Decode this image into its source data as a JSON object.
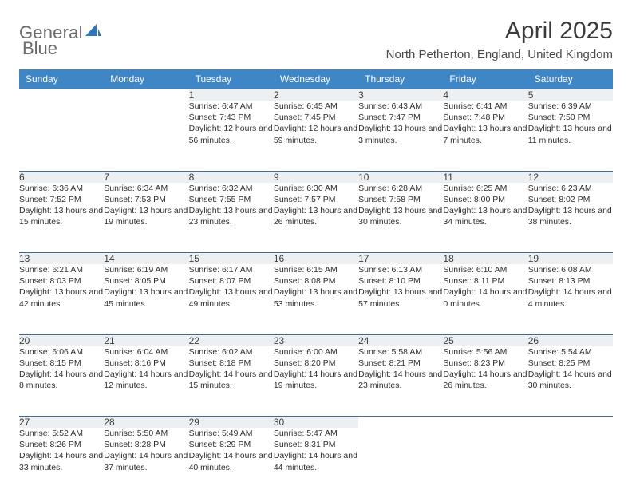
{
  "brand": {
    "name1": "General",
    "name2": "Blue"
  },
  "title": "April 2025",
  "location": "North Petherton, England, United Kingdom",
  "colors": {
    "header_bg": "#3f86c7",
    "header_text": "#ffffff",
    "row_border": "#3f6d99",
    "daynum_bg": "#edf0f2",
    "logo_gray": "#6b6b6b",
    "logo_blue": "#2a77bd"
  },
  "typography": {
    "title_fontsize": 30,
    "location_fontsize": 15,
    "weekday_fontsize": 12,
    "daynum_fontsize": 12,
    "body_fontsize": 10.5
  },
  "week_days": [
    "Sunday",
    "Monday",
    "Tuesday",
    "Wednesday",
    "Thursday",
    "Friday",
    "Saturday"
  ],
  "weeks": [
    [
      null,
      null,
      {
        "n": "1",
        "sr": "6:47 AM",
        "ss": "7:43 PM",
        "dl": "12 hours and 56 minutes."
      },
      {
        "n": "2",
        "sr": "6:45 AM",
        "ss": "7:45 PM",
        "dl": "12 hours and 59 minutes."
      },
      {
        "n": "3",
        "sr": "6:43 AM",
        "ss": "7:47 PM",
        "dl": "13 hours and 3 minutes."
      },
      {
        "n": "4",
        "sr": "6:41 AM",
        "ss": "7:48 PM",
        "dl": "13 hours and 7 minutes."
      },
      {
        "n": "5",
        "sr": "6:39 AM",
        "ss": "7:50 PM",
        "dl": "13 hours and 11 minutes."
      }
    ],
    [
      {
        "n": "6",
        "sr": "6:36 AM",
        "ss": "7:52 PM",
        "dl": "13 hours and 15 minutes."
      },
      {
        "n": "7",
        "sr": "6:34 AM",
        "ss": "7:53 PM",
        "dl": "13 hours and 19 minutes."
      },
      {
        "n": "8",
        "sr": "6:32 AM",
        "ss": "7:55 PM",
        "dl": "13 hours and 23 minutes."
      },
      {
        "n": "9",
        "sr": "6:30 AM",
        "ss": "7:57 PM",
        "dl": "13 hours and 26 minutes."
      },
      {
        "n": "10",
        "sr": "6:28 AM",
        "ss": "7:58 PM",
        "dl": "13 hours and 30 minutes."
      },
      {
        "n": "11",
        "sr": "6:25 AM",
        "ss": "8:00 PM",
        "dl": "13 hours and 34 minutes."
      },
      {
        "n": "12",
        "sr": "6:23 AM",
        "ss": "8:02 PM",
        "dl": "13 hours and 38 minutes."
      }
    ],
    [
      {
        "n": "13",
        "sr": "6:21 AM",
        "ss": "8:03 PM",
        "dl": "13 hours and 42 minutes."
      },
      {
        "n": "14",
        "sr": "6:19 AM",
        "ss": "8:05 PM",
        "dl": "13 hours and 45 minutes."
      },
      {
        "n": "15",
        "sr": "6:17 AM",
        "ss": "8:07 PM",
        "dl": "13 hours and 49 minutes."
      },
      {
        "n": "16",
        "sr": "6:15 AM",
        "ss": "8:08 PM",
        "dl": "13 hours and 53 minutes."
      },
      {
        "n": "17",
        "sr": "6:13 AM",
        "ss": "8:10 PM",
        "dl": "13 hours and 57 minutes."
      },
      {
        "n": "18",
        "sr": "6:10 AM",
        "ss": "8:11 PM",
        "dl": "14 hours and 0 minutes."
      },
      {
        "n": "19",
        "sr": "6:08 AM",
        "ss": "8:13 PM",
        "dl": "14 hours and 4 minutes."
      }
    ],
    [
      {
        "n": "20",
        "sr": "6:06 AM",
        "ss": "8:15 PM",
        "dl": "14 hours and 8 minutes."
      },
      {
        "n": "21",
        "sr": "6:04 AM",
        "ss": "8:16 PM",
        "dl": "14 hours and 12 minutes."
      },
      {
        "n": "22",
        "sr": "6:02 AM",
        "ss": "8:18 PM",
        "dl": "14 hours and 15 minutes."
      },
      {
        "n": "23",
        "sr": "6:00 AM",
        "ss": "8:20 PM",
        "dl": "14 hours and 19 minutes."
      },
      {
        "n": "24",
        "sr": "5:58 AM",
        "ss": "8:21 PM",
        "dl": "14 hours and 23 minutes."
      },
      {
        "n": "25",
        "sr": "5:56 AM",
        "ss": "8:23 PM",
        "dl": "14 hours and 26 minutes."
      },
      {
        "n": "26",
        "sr": "5:54 AM",
        "ss": "8:25 PM",
        "dl": "14 hours and 30 minutes."
      }
    ],
    [
      {
        "n": "27",
        "sr": "5:52 AM",
        "ss": "8:26 PM",
        "dl": "14 hours and 33 minutes."
      },
      {
        "n": "28",
        "sr": "5:50 AM",
        "ss": "8:28 PM",
        "dl": "14 hours and 37 minutes."
      },
      {
        "n": "29",
        "sr": "5:49 AM",
        "ss": "8:29 PM",
        "dl": "14 hours and 40 minutes."
      },
      {
        "n": "30",
        "sr": "5:47 AM",
        "ss": "8:31 PM",
        "dl": "14 hours and 44 minutes."
      },
      null,
      null,
      null
    ]
  ],
  "labels": {
    "sunrise": "Sunrise:",
    "sunset": "Sunset:",
    "daylight": "Daylight:"
  }
}
